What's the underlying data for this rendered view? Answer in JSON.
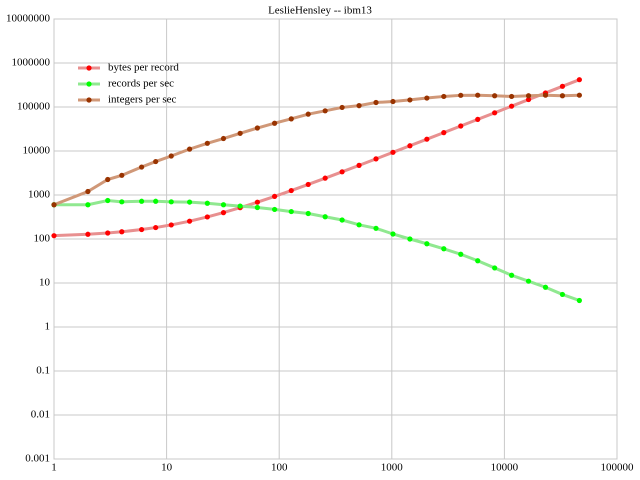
{
  "chart_data": {
    "type": "line",
    "title": "LeslieHensley -- ibm13",
    "x": [
      1,
      2,
      3,
      4,
      6,
      8,
      11,
      16,
      23,
      32,
      45,
      64,
      91,
      128,
      181,
      256,
      362,
      512,
      724,
      1024,
      1448,
      2048,
      2896,
      4096,
      5793,
      8192,
      11585,
      16384,
      23170,
      32768,
      46341
    ],
    "series": [
      {
        "name": "bytes per record",
        "color": "#ff0000",
        "line_color": "#e89090",
        "values": [
          119,
          128,
          137,
          146,
          164,
          182,
          209,
          254,
          317,
          398,
          515,
          686,
          929,
          1262,
          1739,
          2414,
          3368,
          4718,
          6626,
          9326,
          13142,
          18542,
          26174,
          36974,
          52247,
          73838,
          104375,
          147566,
          208640,
          295022,
          417179
        ]
      },
      {
        "name": "records per sec",
        "color": "#00ff00",
        "line_color": "#90e890",
        "values": [
          600,
          600,
          750,
          700,
          720,
          720,
          700,
          690,
          650,
          600,
          560,
          520,
          470,
          420,
          380,
          320,
          270,
          210,
          175,
          130,
          100,
          78,
          60,
          45,
          32,
          22,
          15,
          11,
          8,
          5.5,
          4
        ]
      },
      {
        "name": "integers per sec",
        "color": "#993300",
        "line_color": "#d09878",
        "values": [
          600,
          1200,
          2250,
          2800,
          4320,
          5760,
          7700,
          11040,
          14950,
          19200,
          25200,
          33280,
          42770,
          53760,
          68780,
          81920,
          97740,
          107520,
          126700,
          133120,
          144800,
          159740,
          173760,
          184320,
          185380,
          180220,
          173780,
          180220,
          185360,
          180220,
          185360
        ]
      }
    ],
    "xscale": "log",
    "yscale": "log",
    "xlim": [
      1,
      100000
    ],
    "ylim": [
      0.001,
      10000000
    ],
    "xticks": [
      1,
      10,
      100,
      1000,
      10000,
      100000
    ],
    "yticks": [
      0.001,
      0.01,
      0.1,
      1,
      10,
      100,
      1000,
      10000,
      100000,
      1000000,
      10000000
    ],
    "grid": true,
    "legend": "upper-left"
  }
}
